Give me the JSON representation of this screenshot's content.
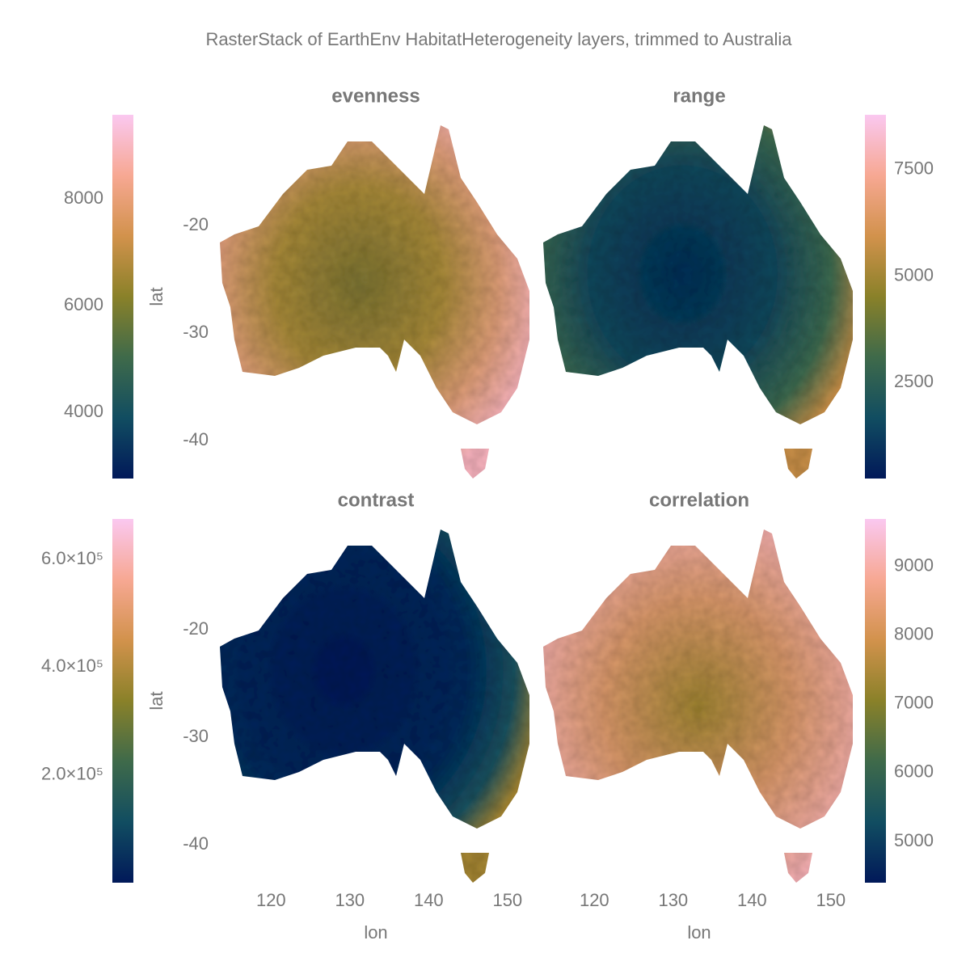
{
  "title": "RasterStack of EarthEnv HabitatHeterogeneity layers, trimmed to Australia",
  "chart_data": [
    {
      "type": "heatmap",
      "title": "evenness",
      "ylabel": "lat",
      "xlim": [
        113.3,
        153.3
      ],
      "ylim": [
        -43.5,
        -9.7
      ],
      "yticks": [
        -20,
        -30,
        -40
      ],
      "clim": [
        2760,
        9580
      ],
      "cticks": [
        4000,
        6000,
        8000
      ],
      "colorbar_side": "left",
      "colormap": [
        "#011959",
        "#114d61",
        "#3f6a4a",
        "#8a8129",
        "#d2924c",
        "#f7a893",
        "#fac8f0"
      ]
    },
    {
      "type": "heatmap",
      "title": "range",
      "xlim": [
        113.3,
        153.3
      ],
      "ylim": [
        -43.5,
        -9.7
      ],
      "clim": [
        240,
        8790
      ],
      "cticks": [
        2500,
        5000,
        7500
      ],
      "colorbar_side": "right",
      "colormap": [
        "#011959",
        "#114d61",
        "#3f6a4a",
        "#8a8129",
        "#d2924c",
        "#f7a893",
        "#fac8f0"
      ]
    },
    {
      "type": "heatmap",
      "title": "contrast",
      "ylabel": "lat",
      "xlabel": "lon",
      "xlim": [
        113.3,
        153.3
      ],
      "ylim": [
        -43.5,
        -9.7
      ],
      "xticks": [
        120,
        130,
        140,
        150
      ],
      "yticks": [
        -20,
        -30,
        -40
      ],
      "clim": [
        0,
        675000
      ],
      "cticks": [
        {
          "value": 200000,
          "label": "2.0×10⁵"
        },
        {
          "value": 400000,
          "label": "4.0×10⁵"
        },
        {
          "value": 600000,
          "label": "6.0×10⁵"
        }
      ],
      "colorbar_side": "left",
      "colormap": [
        "#011959",
        "#114d61",
        "#3f6a4a",
        "#8a8129",
        "#d2924c",
        "#f7a893",
        "#fac8f0"
      ]
    },
    {
      "type": "heatmap",
      "title": "correlation",
      "xlabel": "lon",
      "xlim": [
        113.3,
        153.3
      ],
      "ylim": [
        -43.5,
        -9.7
      ],
      "xticks": [
        120,
        130,
        140,
        150
      ],
      "clim": [
        4400,
        9690
      ],
      "cticks": [
        5000,
        6000,
        7000,
        8000,
        9000
      ],
      "colorbar_side": "right",
      "colormap": [
        "#011959",
        "#114d61",
        "#3f6a4a",
        "#8a8129",
        "#d2924c",
        "#f7a893",
        "#fac8f0"
      ]
    }
  ]
}
